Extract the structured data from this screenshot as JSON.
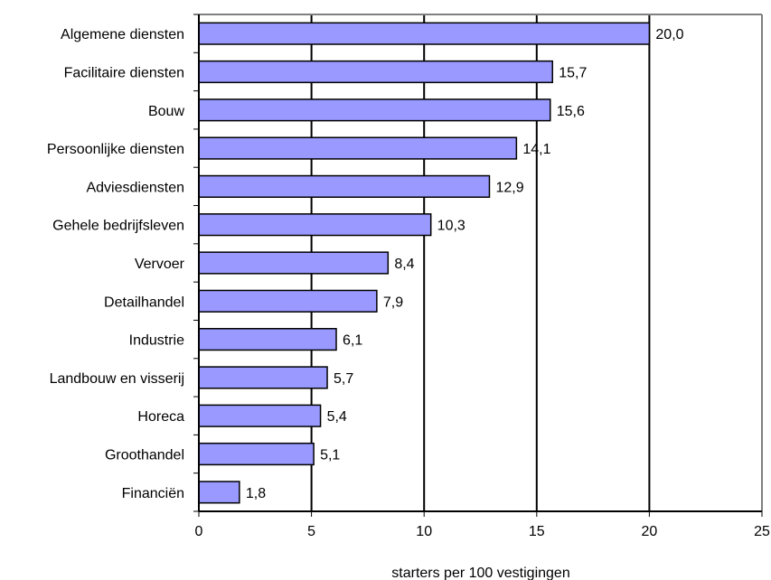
{
  "chart_data": {
    "type": "bar",
    "orientation": "horizontal",
    "title": "",
    "xlabel": "starters per 100 vestigingen",
    "ylabel": "",
    "xlim": [
      0,
      25
    ],
    "xticks": [
      "0",
      "5",
      "10",
      "15",
      "20",
      "25"
    ],
    "grid": true,
    "bar_color": "#9999ff",
    "categories": [
      "Algemene diensten",
      "Facilitaire diensten",
      "Bouw",
      "Persoonlijke diensten",
      "Adviesdiensten",
      "Gehele bedrijfsleven",
      "Vervoer",
      "Detailhandel",
      "Industrie",
      "Landbouw en visserij",
      "Horeca",
      "Groothandel",
      "Financiën"
    ],
    "values": [
      20.0,
      15.7,
      15.6,
      14.1,
      12.9,
      10.3,
      8.4,
      7.9,
      6.1,
      5.7,
      5.4,
      5.1,
      1.8
    ],
    "value_labels": [
      "20,0",
      "15,7",
      "15,6",
      "14,1",
      "12,9",
      "10,3",
      "8,4",
      "7,9",
      "6,1",
      "5,7",
      "5,4",
      "5,1",
      "1,8"
    ]
  }
}
